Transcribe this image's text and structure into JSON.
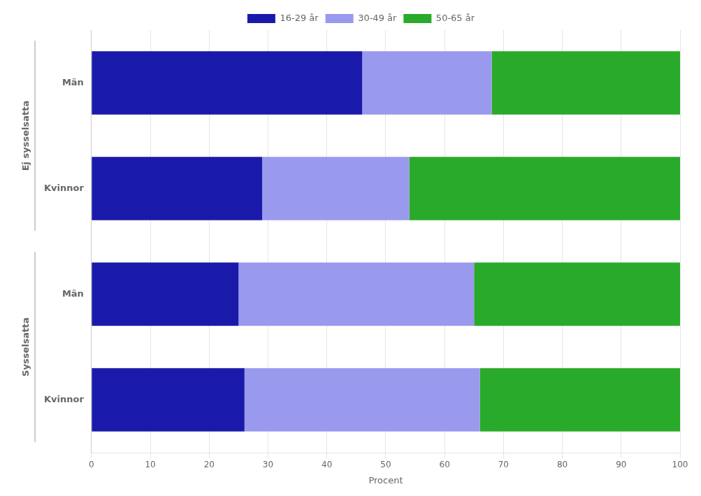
{
  "chart_data": {
    "type": "bar",
    "orientation": "horizontal",
    "stacked": true,
    "categories": [
      "Kvinnor",
      "Män",
      "Kvinnor",
      "Män"
    ],
    "groups": [
      "Sysselsatta",
      "Sysselsatta",
      "Ej sysselsatta",
      "Ej sysselsatta"
    ],
    "series": [
      {
        "name": "16-29 år",
        "color": "#1a1aaa",
        "values": [
          26,
          25,
          29,
          46
        ]
      },
      {
        "name": "30-49 år",
        "color": "#9999ee",
        "values": [
          40,
          40,
          25,
          22
        ]
      },
      {
        "name": "50-65 år",
        "color": "#2aaa2a",
        "values": [
          34,
          35,
          46,
          32
        ]
      }
    ],
    "xlabel": "Procent",
    "xlim": [
      0,
      100
    ],
    "xticks": [
      0,
      10,
      20,
      30,
      40,
      50,
      60,
      70,
      80,
      90,
      100
    ],
    "grid": "x",
    "legend": "top"
  }
}
